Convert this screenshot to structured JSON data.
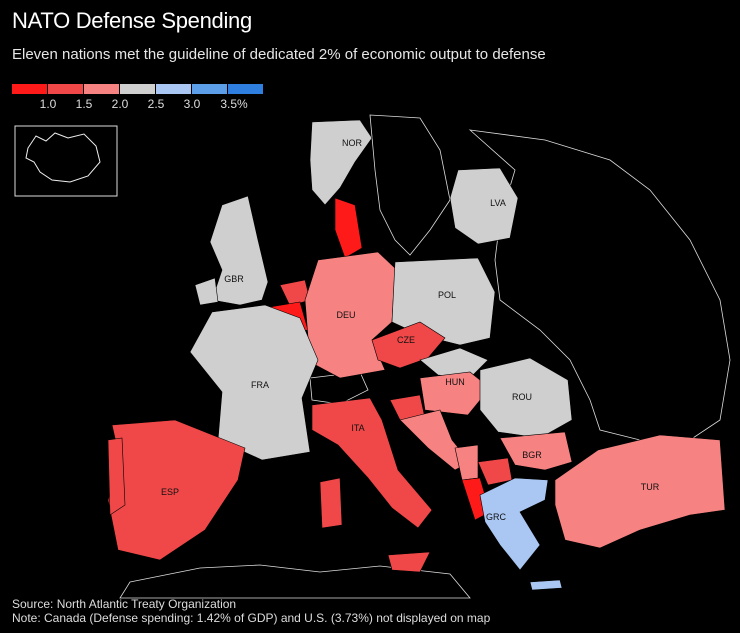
{
  "title": "NATO Defense Spending",
  "subtitle": "Eleven nations met the guideline of dedicated 2% of economic output to defense",
  "legend": {
    "colors": [
      "#ff1a1a",
      "#f04848",
      "#f78282",
      "#cfcfcf",
      "#a9c7f2",
      "#5c9ee8",
      "#2f7fe0"
    ],
    "labels": [
      "1.0",
      "1.5",
      "2.0",
      "2.5",
      "3.0",
      "3.5%"
    ]
  },
  "countries": {
    "NOR": "NOR",
    "LVA": "LVA",
    "GBR": "GBR",
    "DEU": "DEU",
    "POL": "POL",
    "CZE": "CZE",
    "FRA": "FRA",
    "HUN": "HUN",
    "ROU": "ROU",
    "ITA": "ITA",
    "BGR": "BGR",
    "ESP": "ESP",
    "TUR": "TUR",
    "GRC": "GRC"
  },
  "source": "Source: North Atlantic Treaty Organization",
  "note": "Note: Canada (Defense spending: 1.42% of GDP) and U.S. (3.73%) not displayed on map"
}
